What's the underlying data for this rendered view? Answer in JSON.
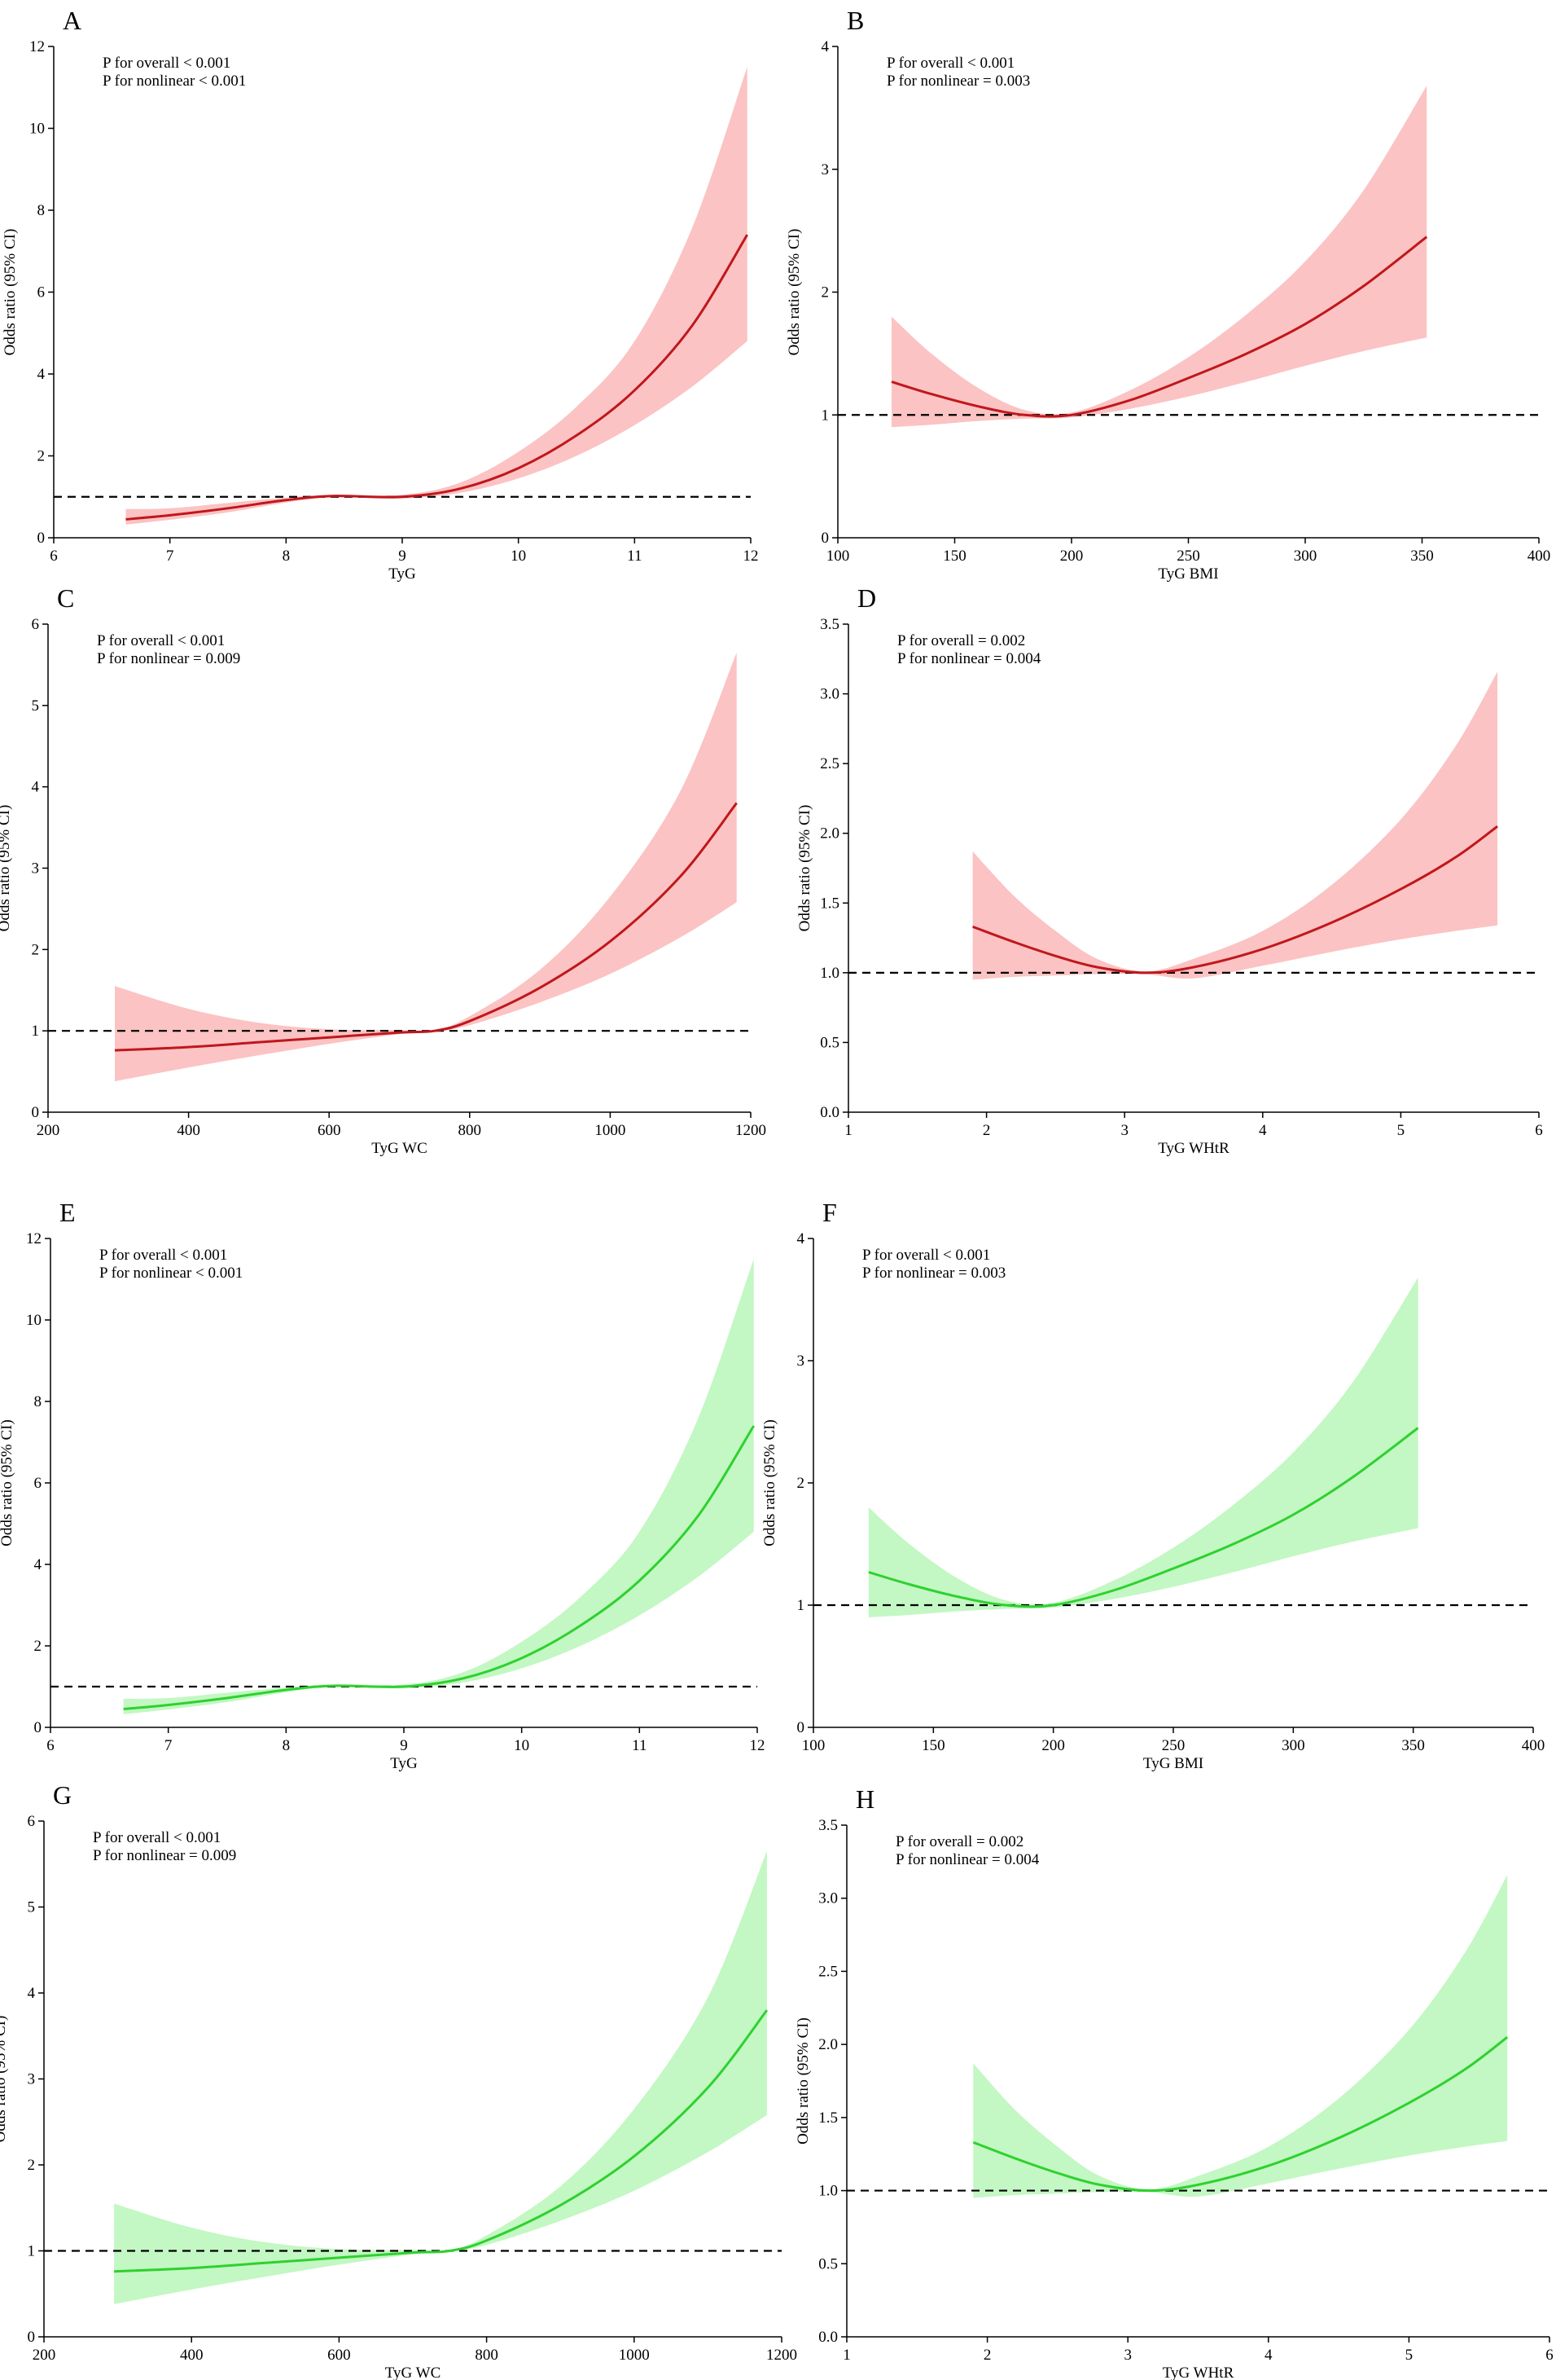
{
  "figure": {
    "panels": [
      {
        "letter": "A",
        "p_overall": "P for overall < 0.001",
        "p_nonlinear": "P for nonlinear < 0.001"
      },
      {
        "letter": "B",
        "p_overall": "P for overall < 0.001",
        "p_nonlinear": "P for nonlinear = 0.003"
      },
      {
        "letter": "C",
        "p_overall": "P for overall < 0.001",
        "p_nonlinear": "P for nonlinear = 0.009"
      },
      {
        "letter": "D",
        "p_overall": "P for overall = 0.002",
        "p_nonlinear": "P for nonlinear = 0.004"
      },
      {
        "letter": "E",
        "p_overall": "P for overall < 0.001",
        "p_nonlinear": "P for nonlinear < 0.001"
      },
      {
        "letter": "F",
        "p_overall": "P for overall < 0.001",
        "p_nonlinear": "P for nonlinear = 0.003"
      },
      {
        "letter": "G",
        "p_overall": "P for overall < 0.001",
        "p_nonlinear": "P for nonlinear = 0.009"
      },
      {
        "letter": "H",
        "p_overall": "P for overall = 0.002",
        "p_nonlinear": "P for nonlinear = 0.004"
      }
    ]
  },
  "colors": {
    "red_line": "#c0171c",
    "red_band": "#fbc3c3",
    "green_line": "#2ed12e",
    "green_band": "#c3f7c3",
    "reference_line": "#000000"
  },
  "chart_data": [
    {
      "type": "line",
      "panel": "A",
      "title": "",
      "xlabel": "TyG",
      "ylabel": "Odds ratio (95% CI)",
      "xlim": [
        6,
        12
      ],
      "ylim": [
        0,
        12
      ],
      "xticks": [
        6,
        7,
        8,
        9,
        10,
        11,
        12
      ],
      "xtick_labels": [
        "6",
        "7",
        "8",
        "9",
        "10",
        "11",
        "12"
      ],
      "yticks": [
        0,
        2,
        4,
        6,
        8,
        10,
        12
      ],
      "ytick_labels": [
        "0",
        "2",
        "4",
        "6",
        "8",
        "10",
        "12"
      ],
      "reference_y": 1,
      "color": "red",
      "x": [
        6.62,
        7.0,
        7.5,
        8.0,
        8.4,
        9.0,
        9.5,
        10.0,
        10.5,
        11.0,
        11.5,
        11.97
      ],
      "series": [
        {
          "name": "Odds ratio",
          "values": [
            0.45,
            0.55,
            0.72,
            0.92,
            1.02,
            1.0,
            1.2,
            1.7,
            2.5,
            3.6,
            5.2,
            7.4
          ]
        },
        {
          "name": "95% CI lower",
          "values": [
            0.32,
            0.44,
            0.62,
            0.86,
            0.99,
            0.96,
            1.1,
            1.45,
            2.0,
            2.75,
            3.7,
            4.8
          ]
        },
        {
          "name": "95% CI upper",
          "values": [
            0.7,
            0.72,
            0.85,
            0.98,
            1.05,
            1.05,
            1.35,
            2.1,
            3.2,
            4.8,
            7.6,
            11.5
          ]
        }
      ]
    },
    {
      "type": "line",
      "panel": "B",
      "title": "",
      "xlabel": "TyG BMI",
      "ylabel": "Odds ratio (95% CI)",
      "xlim": [
        100,
        400
      ],
      "ylim": [
        0,
        4
      ],
      "xticks": [
        100,
        150,
        200,
        250,
        300,
        350,
        400
      ],
      "xtick_labels": [
        "100",
        "150",
        "200",
        "250",
        "300",
        "350",
        "400"
      ],
      "yticks": [
        0,
        1,
        2,
        3,
        4
      ],
      "ytick_labels": [
        "0",
        "1",
        "2",
        "3",
        "4"
      ],
      "reference_y": 1,
      "color": "red",
      "x": [
        123,
        140,
        160,
        180,
        200,
        225,
        250,
        275,
        300,
        325,
        352
      ],
      "series": [
        {
          "name": "Odds ratio",
          "values": [
            1.27,
            1.17,
            1.07,
            1.0,
            1.0,
            1.12,
            1.3,
            1.5,
            1.74,
            2.05,
            2.45
          ]
        },
        {
          "name": "95% CI lower",
          "values": [
            0.9,
            0.92,
            0.95,
            0.97,
            0.98,
            1.05,
            1.15,
            1.27,
            1.4,
            1.52,
            1.63
          ]
        },
        {
          "name": "95% CI upper",
          "values": [
            1.8,
            1.5,
            1.22,
            1.04,
            1.02,
            1.2,
            1.47,
            1.82,
            2.25,
            2.83,
            3.68
          ]
        }
      ]
    },
    {
      "type": "line",
      "panel": "C",
      "title": "",
      "xlabel": "TyG WC",
      "ylabel": "Odds ratio (95% CI)",
      "xlim": [
        200,
        1200
      ],
      "ylim": [
        0,
        6
      ],
      "xticks": [
        200,
        400,
        600,
        800,
        1000,
        1200
      ],
      "xtick_labels": [
        "200",
        "400",
        "600",
        "800",
        "1000",
        "1200"
      ],
      "yticks": [
        0,
        1,
        2,
        3,
        4,
        5,
        6
      ],
      "ytick_labels": [
        "0",
        "1",
        "2",
        "3",
        "4",
        "5",
        "6"
      ],
      "reference_y": 1,
      "color": "red",
      "x": [
        295,
        400,
        500,
        600,
        700,
        750,
        800,
        900,
        1000,
        1100,
        1180
      ],
      "series": [
        {
          "name": "Odds ratio",
          "values": [
            0.76,
            0.8,
            0.86,
            0.92,
            0.98,
            1.0,
            1.12,
            1.53,
            2.1,
            2.9,
            3.8
          ]
        },
        {
          "name": "95% CI lower",
          "values": [
            0.38,
            0.55,
            0.7,
            0.84,
            0.96,
            0.99,
            1.07,
            1.35,
            1.7,
            2.15,
            2.58
          ]
        },
        {
          "name": "95% CI upper",
          "values": [
            1.55,
            1.27,
            1.1,
            1.02,
            1.01,
            1.01,
            1.18,
            1.75,
            2.65,
            3.95,
            5.65
          ]
        }
      ]
    },
    {
      "type": "line",
      "panel": "D",
      "title": "",
      "xlabel": "TyG WHtR",
      "ylabel": "Odds ratio (95% CI)",
      "xlim": [
        1,
        6
      ],
      "ylim": [
        0,
        3.5
      ],
      "xticks": [
        1,
        2,
        3,
        4,
        5,
        6
      ],
      "xtick_labels": [
        "1",
        "2",
        "3",
        "4",
        "5",
        "6"
      ],
      "yticks": [
        0,
        0.5,
        1,
        1.5,
        2,
        2.5,
        3,
        3.5
      ],
      "ytick_labels": [
        "0.0",
        "0.5",
        "1.0",
        "1.5",
        "2.0",
        "2.5",
        "3.0",
        "3.5"
      ],
      "reference_y": 1,
      "color": "red",
      "x": [
        1.9,
        2.2,
        2.5,
        2.8,
        3.15,
        3.5,
        4.0,
        4.5,
        5.0,
        5.4,
        5.7
      ],
      "series": [
        {
          "name": "Odds ratio",
          "values": [
            1.33,
            1.22,
            1.12,
            1.04,
            1.0,
            1.04,
            1.17,
            1.36,
            1.6,
            1.83,
            2.05
          ]
        },
        {
          "name": "95% CI lower",
          "values": [
            0.95,
            0.97,
            0.98,
            0.99,
            0.99,
            0.96,
            1.05,
            1.15,
            1.24,
            1.3,
            1.34
          ]
        },
        {
          "name": "95% CI upper",
          "values": [
            1.87,
            1.55,
            1.3,
            1.1,
            1.01,
            1.1,
            1.3,
            1.63,
            2.1,
            2.63,
            3.16
          ]
        }
      ]
    },
    {
      "type": "line",
      "panel": "E",
      "title": "",
      "xlabel": "TyG",
      "ylabel": "Odds ratio (95% CI)",
      "xlim": [
        6,
        12
      ],
      "ylim": [
        0,
        12
      ],
      "xticks": [
        6,
        7,
        8,
        9,
        10,
        11,
        12
      ],
      "xtick_labels": [
        "6",
        "7",
        "8",
        "9",
        "10",
        "11",
        "12"
      ],
      "yticks": [
        0,
        2,
        4,
        6,
        8,
        10,
        12
      ],
      "ytick_labels": [
        "0",
        "2",
        "4",
        "6",
        "8",
        "10",
        "12"
      ],
      "reference_y": 1,
      "color": "green",
      "x": [
        6.62,
        7.0,
        7.5,
        8.0,
        8.4,
        9.0,
        9.5,
        10.0,
        10.5,
        11.0,
        11.5,
        11.97
      ],
      "series": [
        {
          "name": "Odds ratio",
          "values": [
            0.45,
            0.55,
            0.72,
            0.92,
            1.02,
            1.0,
            1.2,
            1.7,
            2.5,
            3.6,
            5.2,
            7.4
          ]
        },
        {
          "name": "95% CI lower",
          "values": [
            0.32,
            0.44,
            0.62,
            0.86,
            0.99,
            0.96,
            1.1,
            1.45,
            2.0,
            2.75,
            3.7,
            4.8
          ]
        },
        {
          "name": "95% CI upper",
          "values": [
            0.7,
            0.72,
            0.85,
            0.98,
            1.05,
            1.05,
            1.35,
            2.1,
            3.2,
            4.8,
            7.6,
            11.5
          ]
        }
      ]
    },
    {
      "type": "line",
      "panel": "F",
      "title": "",
      "xlabel": "TyG BMI",
      "ylabel": "Odds ratio (95% CI)",
      "xlim": [
        100,
        400
      ],
      "ylim": [
        0,
        4
      ],
      "xticks": [
        100,
        150,
        200,
        250,
        300,
        350,
        400
      ],
      "xtick_labels": [
        "100",
        "150",
        "200",
        "250",
        "300",
        "350",
        "400"
      ],
      "yticks": [
        0,
        1,
        2,
        3,
        4
      ],
      "ytick_labels": [
        "0",
        "1",
        "2",
        "3",
        "4"
      ],
      "reference_y": 1,
      "color": "green",
      "x": [
        123,
        140,
        160,
        180,
        200,
        225,
        250,
        275,
        300,
        325,
        352
      ],
      "series": [
        {
          "name": "Odds ratio",
          "values": [
            1.27,
            1.17,
            1.07,
            1.0,
            1.0,
            1.12,
            1.3,
            1.5,
            1.74,
            2.05,
            2.45
          ]
        },
        {
          "name": "95% CI lower",
          "values": [
            0.9,
            0.92,
            0.95,
            0.97,
            0.98,
            1.05,
            1.15,
            1.27,
            1.4,
            1.52,
            1.63
          ]
        },
        {
          "name": "95% CI upper",
          "values": [
            1.8,
            1.5,
            1.22,
            1.04,
            1.02,
            1.2,
            1.47,
            1.82,
            2.25,
            2.83,
            3.68
          ]
        }
      ]
    },
    {
      "type": "line",
      "panel": "G",
      "title": "",
      "xlabel": "TyG WC",
      "ylabel": "Odds ratio (95% CI)",
      "xlim": [
        200,
        1200
      ],
      "ylim": [
        0,
        6
      ],
      "xticks": [
        200,
        400,
        600,
        800,
        1000,
        1200
      ],
      "xtick_labels": [
        "200",
        "400",
        "600",
        "800",
        "1000",
        "1200"
      ],
      "yticks": [
        0,
        1,
        2,
        3,
        4,
        5,
        6
      ],
      "ytick_labels": [
        "0",
        "1",
        "2",
        "3",
        "4",
        "5",
        "6"
      ],
      "reference_y": 1,
      "color": "green",
      "x": [
        295,
        400,
        500,
        600,
        700,
        750,
        800,
        900,
        1000,
        1100,
        1180
      ],
      "series": [
        {
          "name": "Odds ratio",
          "values": [
            0.76,
            0.8,
            0.86,
            0.92,
            0.98,
            1.0,
            1.12,
            1.53,
            2.1,
            2.9,
            3.8
          ]
        },
        {
          "name": "95% CI lower",
          "values": [
            0.38,
            0.55,
            0.7,
            0.84,
            0.96,
            0.99,
            1.07,
            1.35,
            1.7,
            2.15,
            2.58
          ]
        },
        {
          "name": "95% CI upper",
          "values": [
            1.55,
            1.27,
            1.1,
            1.02,
            1.01,
            1.01,
            1.18,
            1.75,
            2.65,
            3.95,
            5.65
          ]
        }
      ]
    },
    {
      "type": "line",
      "panel": "H",
      "title": "",
      "xlabel": "TyG WHtR",
      "ylabel": "Odds ratio (95% CI)",
      "xlim": [
        1,
        6
      ],
      "ylim": [
        0,
        3.5
      ],
      "xticks": [
        1,
        2,
        3,
        4,
        5,
        6
      ],
      "xtick_labels": [
        "1",
        "2",
        "3",
        "4",
        "5",
        "6"
      ],
      "yticks": [
        0,
        0.5,
        1,
        1.5,
        2,
        2.5,
        3,
        3.5
      ],
      "ytick_labels": [
        "0.0",
        "0.5",
        "1.0",
        "1.5",
        "2.0",
        "2.5",
        "3.0",
        "3.5"
      ],
      "reference_y": 1,
      "color": "green",
      "x": [
        1.9,
        2.2,
        2.5,
        2.8,
        3.15,
        3.5,
        4.0,
        4.5,
        5.0,
        5.4,
        5.7
      ],
      "series": [
        {
          "name": "Odds ratio",
          "values": [
            1.33,
            1.22,
            1.12,
            1.04,
            1.0,
            1.04,
            1.17,
            1.36,
            1.6,
            1.83,
            2.05
          ]
        },
        {
          "name": "95% CI lower",
          "values": [
            0.95,
            0.97,
            0.98,
            0.99,
            0.99,
            0.96,
            1.05,
            1.15,
            1.24,
            1.3,
            1.34
          ]
        },
        {
          "name": "95% CI upper",
          "values": [
            1.87,
            1.55,
            1.3,
            1.1,
            1.01,
            1.1,
            1.3,
            1.63,
            2.1,
            2.63,
            3.16
          ]
        }
      ]
    }
  ]
}
